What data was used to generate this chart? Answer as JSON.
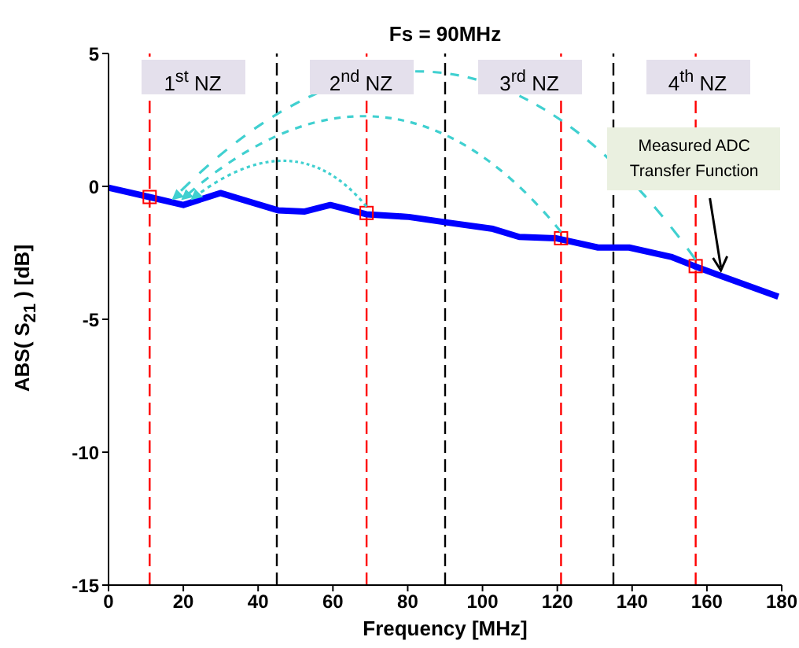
{
  "chart_data": {
    "type": "line",
    "title": "Fs = 90MHz",
    "xlabel": "Frequency [MHz]",
    "ylabel": "ABS( S$_{21}$ ) [dB]",
    "xlim": [
      0,
      180
    ],
    "xticks": [
      0,
      20,
      40,
      60,
      80,
      100,
      120,
      140,
      160,
      180
    ],
    "ylim": [
      -15,
      5
    ],
    "yticks": [
      -15,
      -10,
      -5,
      0,
      5
    ],
    "grid": false,
    "series": [
      {
        "type": "line",
        "color": "#0000ff",
        "marker": "none",
        "x": [
          0,
          10.9,
          20,
          29.9,
          45.3,
          52.3,
          59.3,
          68.9,
          80.3,
          90.1,
          102.8,
          109.8,
          119.6,
          130.9,
          139.2,
          150.4,
          156.7,
          164.4,
          179.1
        ],
        "values": [
          -0.05,
          -0.4,
          -0.7,
          -0.25,
          -0.9,
          -0.95,
          -0.7,
          -1.05,
          -1.15,
          -1.35,
          -1.6,
          -1.9,
          -1.95,
          -2.3,
          -2.3,
          -2.65,
          -3.0,
          -3.4,
          -4.15
        ]
      },
      {
        "type": "scatter",
        "color": "#ff0000",
        "marker": "square",
        "x": [
          11,
          69,
          121,
          157
        ],
        "values": [
          -0.4,
          -1.0,
          -1.95,
          -3.0
        ]
      }
    ],
    "ref_lines": [
      {
        "axis": "x",
        "value": 11,
        "color": "#ff0000",
        "line_style": "dashed"
      },
      {
        "axis": "x",
        "value": 69,
        "color": "#ff0000",
        "line_style": "dashed"
      },
      {
        "axis": "x",
        "value": 121,
        "color": "#ff0000",
        "line_style": "dashed"
      },
      {
        "axis": "x",
        "value": 157,
        "color": "#ff0000",
        "line_style": "dashed"
      },
      {
        "axis": "x",
        "value": 45,
        "color": "#000000",
        "line_style": "dashed"
      },
      {
        "axis": "x",
        "value": 90,
        "color": "#000000",
        "line_style": "dashed"
      },
      {
        "axis": "x",
        "value": 135,
        "color": "#000000",
        "line_style": "dashed"
      }
    ],
    "annotations": [
      "1$^{st}$ NZ",
      "2$^{nd}$ NZ",
      "3$^{rd}$ NZ",
      "4$^{th}$ NZ",
      {
        "text": "Measured ADC Transfer Function",
        "x": 165,
        "y": -3.4
      }
    ]
  }
}
